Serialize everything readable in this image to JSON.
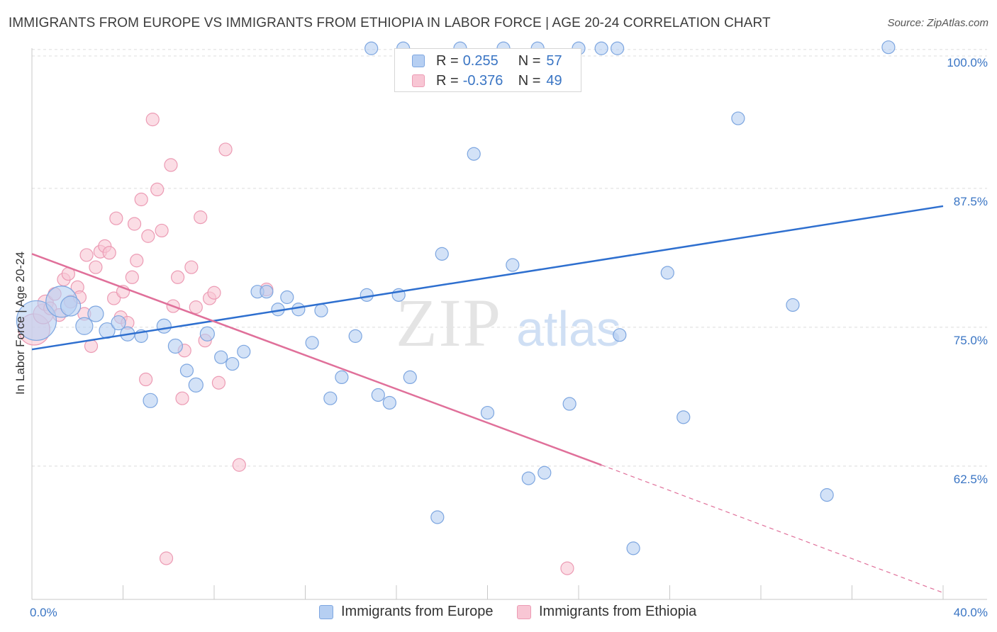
{
  "title": "IMMIGRANTS FROM EUROPE VS IMMIGRANTS FROM ETHIOPIA IN LABOR FORCE | AGE 20-24 CORRELATION CHART",
  "source": "Source: ZipAtlas.com",
  "watermark": {
    "zip": "ZIP",
    "atlas": "atlas"
  },
  "legend": {
    "rows": [
      {
        "r_label": "R =",
        "r_value": "0.255",
        "n_label": "N =",
        "n_value": "57"
      },
      {
        "r_label": "R =",
        "r_value": "-0.376",
        "n_label": "N =",
        "n_value": "49"
      }
    ]
  },
  "chart_data": {
    "type": "scatter",
    "title": "IMMIGRANTS FROM EUROPE VS IMMIGRANTS FROM ETHIOPIA IN LABOR FORCE | AGE 20-24 CORRELATION CHART",
    "xlabel": "",
    "ylabel": "In Labor Force | Age 20-24",
    "xlim": [
      0,
      40
    ],
    "ylim": [
      50.5,
      100.5
    ],
    "x_tick_labels": [
      "0.0%",
      "40.0%"
    ],
    "y_ticks": [
      100,
      87.5,
      75,
      62.5
    ],
    "y_tick_labels": [
      "100.0%",
      "87.5%",
      "75.0%",
      "62.5%"
    ],
    "grid": true,
    "colors": {
      "europe_fill": "#b6cff2",
      "europe_stroke": "#7da6e0",
      "europe_line": "#2e6fcf",
      "ethiopia_fill": "#f8c6d4",
      "ethiopia_stroke": "#ec9bb4",
      "ethiopia_line": "#e0709a",
      "tick_label": "#3a75c4",
      "grid": "#dcdcdc"
    },
    "series": [
      {
        "name": "Immigrants from Europe",
        "R": 0.255,
        "N": 57,
        "trend": {
          "x0": 0,
          "y0": 73.0,
          "x1": 40,
          "y1": 85.9
        },
        "points": [
          [
            0.2,
            75.6,
            28
          ],
          [
            1.3,
            77.3,
            22
          ],
          [
            1.7,
            76.9,
            14
          ],
          [
            2.3,
            75.1,
            12
          ],
          [
            2.8,
            76.2,
            11
          ],
          [
            3.3,
            74.7,
            11
          ],
          [
            3.8,
            75.4,
            10
          ],
          [
            4.2,
            74.4,
            10
          ],
          [
            4.8,
            74.2,
            9
          ],
          [
            5.2,
            68.4,
            10
          ],
          [
            5.8,
            75.1,
            10
          ],
          [
            6.3,
            73.3,
            10
          ],
          [
            6.8,
            71.1,
            9
          ],
          [
            7.2,
            69.8,
            10
          ],
          [
            7.7,
            74.4,
            10
          ],
          [
            8.3,
            72.3,
            9
          ],
          [
            8.8,
            71.7,
            9
          ],
          [
            9.3,
            72.8,
            9
          ],
          [
            9.9,
            78.2,
            9
          ],
          [
            10.3,
            78.2,
            9
          ],
          [
            10.8,
            76.6,
            9
          ],
          [
            11.2,
            77.7,
            9
          ],
          [
            11.7,
            76.6,
            9
          ],
          [
            12.3,
            73.6,
            9
          ],
          [
            12.7,
            76.5,
            9
          ],
          [
            13.1,
            68.6,
            9
          ],
          [
            13.6,
            70.5,
            9
          ],
          [
            14.2,
            74.2,
            9
          ],
          [
            14.7,
            77.9,
            9
          ],
          [
            15.2,
            68.9,
            9
          ],
          [
            15.7,
            68.2,
            9
          ],
          [
            16.1,
            77.9,
            9
          ],
          [
            16.6,
            70.5,
            9
          ],
          [
            17.8,
            57.9,
            9
          ],
          [
            18.0,
            81.6,
            9
          ],
          [
            19.4,
            90.6,
            9
          ],
          [
            20.0,
            67.3,
            9
          ],
          [
            21.1,
            80.6,
            9
          ],
          [
            21.8,
            61.4,
            9
          ],
          [
            22.5,
            61.9,
            9
          ],
          [
            23.6,
            68.1,
            9
          ],
          [
            25.8,
            74.3,
            9
          ],
          [
            26.4,
            55.1,
            9
          ],
          [
            27.9,
            79.9,
            9
          ],
          [
            28.6,
            66.9,
            9
          ],
          [
            31.0,
            93.8,
            9
          ],
          [
            33.4,
            77.0,
            9
          ],
          [
            34.9,
            59.9,
            9
          ],
          [
            37.6,
            100.2,
            9
          ],
          [
            18.8,
            100.1,
            9
          ],
          [
            20.7,
            100.1,
            9
          ],
          [
            22.2,
            100.1,
            9
          ],
          [
            24.0,
            100.1,
            9
          ],
          [
            25.0,
            100.1,
            9
          ],
          [
            25.7,
            100.1,
            9
          ],
          [
            16.3,
            100.1,
            9
          ],
          [
            14.9,
            100.1,
            9
          ]
        ]
      },
      {
        "name": "Immigrants from Ethiopia",
        "R": -0.376,
        "N": 49,
        "trend": {
          "x0": 0,
          "y0": 81.6,
          "x1": 25.0,
          "y1": 62.6,
          "dash_x1": 40,
          "dash_y1": 51.1
        },
        "points": [
          [
            0.1,
            74.8,
            22
          ],
          [
            0.5,
            76.2,
            14
          ],
          [
            0.6,
            77.2,
            11
          ],
          [
            0.8,
            76.7,
            9
          ],
          [
            1.0,
            78.0,
            9
          ],
          [
            1.2,
            76.1,
            9
          ],
          [
            1.4,
            79.3,
            9
          ],
          [
            1.6,
            79.8,
            9
          ],
          [
            1.7,
            77.3,
            9
          ],
          [
            2.0,
            78.6,
            9
          ],
          [
            2.1,
            77.7,
            9
          ],
          [
            2.3,
            76.2,
            9
          ],
          [
            2.4,
            81.5,
            9
          ],
          [
            2.6,
            73.3,
            9
          ],
          [
            2.8,
            80.4,
            9
          ],
          [
            3.0,
            81.8,
            9
          ],
          [
            3.2,
            82.3,
            9
          ],
          [
            3.4,
            81.7,
            9
          ],
          [
            3.6,
            77.6,
            9
          ],
          [
            3.7,
            84.8,
            9
          ],
          [
            3.9,
            75.9,
            9
          ],
          [
            4.0,
            78.2,
            9
          ],
          [
            4.2,
            75.4,
            9
          ],
          [
            4.4,
            79.5,
            9
          ],
          [
            4.5,
            84.3,
            9
          ],
          [
            4.6,
            81.0,
            9
          ],
          [
            4.8,
            86.5,
            9
          ],
          [
            5.0,
            70.3,
            9
          ],
          [
            5.1,
            83.2,
            9
          ],
          [
            5.3,
            93.7,
            9
          ],
          [
            5.5,
            87.4,
            9
          ],
          [
            5.7,
            83.7,
            9
          ],
          [
            5.9,
            54.2,
            9
          ],
          [
            6.1,
            89.6,
            9
          ],
          [
            6.2,
            76.9,
            9
          ],
          [
            6.4,
            79.5,
            9
          ],
          [
            6.6,
            68.6,
            9
          ],
          [
            6.7,
            72.9,
            9
          ],
          [
            7.0,
            80.4,
            9
          ],
          [
            7.2,
            76.8,
            9
          ],
          [
            7.4,
            84.9,
            9
          ],
          [
            7.6,
            73.8,
            9
          ],
          [
            7.8,
            77.6,
            9
          ],
          [
            8.0,
            78.1,
            9
          ],
          [
            8.2,
            70.0,
            9
          ],
          [
            8.5,
            91.0,
            9
          ],
          [
            9.1,
            62.6,
            9
          ],
          [
            10.3,
            78.4,
            9
          ],
          [
            23.5,
            53.3,
            9
          ]
        ]
      }
    ]
  },
  "bottom_legend": {
    "items": [
      "Immigrants from Europe",
      "Immigrants from Ethiopia"
    ]
  }
}
